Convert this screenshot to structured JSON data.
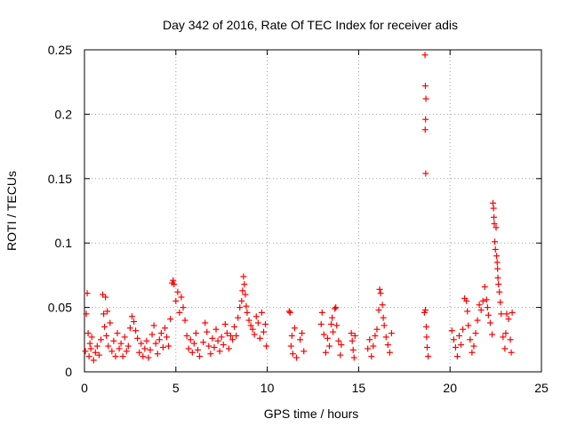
{
  "chart_data": {
    "type": "scatter",
    "title": "Day 342 of 2016, Rate Of TEC Index for receiver adis",
    "xlabel": "GPS time / hours",
    "ylabel": "ROTI / TECUs",
    "xlim": [
      0,
      25
    ],
    "ylim": [
      0,
      0.25
    ],
    "xticks": [
      0,
      5,
      10,
      15,
      20,
      25
    ],
    "xtick_labels": [
      "0",
      "5",
      "10",
      "15",
      "20",
      "25"
    ],
    "yticks": [
      0,
      0.05,
      0.1,
      0.15,
      0.2,
      0.25
    ],
    "ytick_labels": [
      "0",
      "0.05",
      "0.1",
      "0.15",
      "0.2",
      "0.25"
    ],
    "grid": true,
    "marker": "+",
    "color": "#ff0000",
    "series": [
      {
        "name": "ROTI",
        "points": [
          [
            0.05,
            0.016
          ],
          [
            0.1,
            0.045
          ],
          [
            0.15,
            0.061
          ],
          [
            0.2,
            0.03
          ],
          [
            0.25,
            0.012
          ],
          [
            0.3,
            0.022
          ],
          [
            0.35,
            0.018
          ],
          [
            0.4,
            0.027
          ],
          [
            0.5,
            0.009
          ],
          [
            0.6,
            0.015
          ],
          [
            0.7,
            0.02
          ],
          [
            0.8,
            0.013
          ],
          [
            0.9,
            0.025
          ],
          [
            1.0,
            0.06
          ],
          [
            1.05,
            0.045
          ],
          [
            1.1,
            0.035
          ],
          [
            1.15,
            0.058
          ],
          [
            1.2,
            0.028
          ],
          [
            1.25,
            0.047
          ],
          [
            1.3,
            0.02
          ],
          [
            1.4,
            0.038
          ],
          [
            1.5,
            0.016
          ],
          [
            1.6,
            0.024
          ],
          [
            1.7,
            0.012
          ],
          [
            1.8,
            0.03
          ],
          [
            1.9,
            0.018
          ],
          [
            2.0,
            0.022
          ],
          [
            2.1,
            0.012
          ],
          [
            2.2,
            0.027
          ],
          [
            2.3,
            0.016
          ],
          [
            2.4,
            0.02
          ],
          [
            2.5,
            0.034
          ],
          [
            2.6,
            0.043
          ],
          [
            2.7,
            0.039
          ],
          [
            2.8,
            0.032
          ],
          [
            2.9,
            0.026
          ],
          [
            3.0,
            0.015
          ],
          [
            3.1,
            0.022
          ],
          [
            3.2,
            0.012
          ],
          [
            3.3,
            0.018
          ],
          [
            3.4,
            0.024
          ],
          [
            3.5,
            0.011
          ],
          [
            3.6,
            0.017
          ],
          [
            3.7,
            0.029
          ],
          [
            3.8,
            0.036
          ],
          [
            3.9,
            0.022
          ],
          [
            4.0,
            0.014
          ],
          [
            4.1,
            0.025
          ],
          [
            4.2,
            0.03
          ],
          [
            4.3,
            0.019
          ],
          [
            4.4,
            0.034
          ],
          [
            4.5,
            0.027
          ],
          [
            4.6,
            0.02
          ],
          [
            4.7,
            0.041
          ],
          [
            4.8,
            0.069
          ],
          [
            4.85,
            0.071
          ],
          [
            4.9,
            0.068
          ],
          [
            5.0,
            0.055
          ],
          [
            5.1,
            0.062
          ],
          [
            5.2,
            0.046
          ],
          [
            5.3,
            0.058
          ],
          [
            5.4,
            0.05
          ],
          [
            5.5,
            0.04
          ],
          [
            5.6,
            0.028
          ],
          [
            5.7,
            0.018
          ],
          [
            5.8,
            0.025
          ],
          [
            5.9,
            0.015
          ],
          [
            6.0,
            0.022
          ],
          [
            6.1,
            0.03
          ],
          [
            6.2,
            0.017
          ],
          [
            6.3,
            0.012
          ],
          [
            6.5,
            0.023
          ],
          [
            6.6,
            0.038
          ],
          [
            6.7,
            0.031
          ],
          [
            6.8,
            0.02
          ],
          [
            6.9,
            0.014
          ],
          [
            7.0,
            0.026
          ],
          [
            7.1,
            0.019
          ],
          [
            7.2,
            0.033
          ],
          [
            7.3,
            0.024
          ],
          [
            7.4,
            0.016
          ],
          [
            7.5,
            0.027
          ],
          [
            7.6,
            0.021
          ],
          [
            7.7,
            0.037
          ],
          [
            7.8,
            0.03
          ],
          [
            7.9,
            0.018
          ],
          [
            8.0,
            0.028
          ],
          [
            8.1,
            0.025
          ],
          [
            8.2,
            0.035
          ],
          [
            8.3,
            0.028
          ],
          [
            8.4,
            0.042
          ],
          [
            8.5,
            0.05
          ],
          [
            8.6,
            0.055
          ],
          [
            8.65,
            0.063
          ],
          [
            8.7,
            0.074
          ],
          [
            8.75,
            0.068
          ],
          [
            8.8,
            0.06
          ],
          [
            8.85,
            0.051
          ],
          [
            8.9,
            0.046
          ],
          [
            9.0,
            0.04
          ],
          [
            9.1,
            0.036
          ],
          [
            9.2,
            0.033
          ],
          [
            9.3,
            0.029
          ],
          [
            9.4,
            0.043
          ],
          [
            9.5,
            0.038
          ],
          [
            9.6,
            0.026
          ],
          [
            9.7,
            0.046
          ],
          [
            9.8,
            0.031
          ],
          [
            9.9,
            0.037
          ],
          [
            9.95,
            0.02
          ],
          [
            11.2,
            0.047
          ],
          [
            11.25,
            0.046
          ],
          [
            11.3,
            0.02
          ],
          [
            11.35,
            0.028
          ],
          [
            11.4,
            0.014
          ],
          [
            11.5,
            0.034
          ],
          [
            11.6,
            0.011
          ],
          [
            11.8,
            0.025
          ],
          [
            11.9,
            0.03
          ],
          [
            12.0,
            0.016
          ],
          [
            12.95,
            0.037
          ],
          [
            13.0,
            0.046
          ],
          [
            13.1,
            0.029
          ],
          [
            13.2,
            0.015
          ],
          [
            13.3,
            0.026
          ],
          [
            13.4,
            0.02
          ],
          [
            13.5,
            0.037
          ],
          [
            13.55,
            0.042
          ],
          [
            13.6,
            0.031
          ],
          [
            13.7,
            0.049
          ],
          [
            13.75,
            0.05
          ],
          [
            13.8,
            0.036
          ],
          [
            13.9,
            0.024
          ],
          [
            14.0,
            0.013
          ],
          [
            14.05,
            0.021
          ],
          [
            14.6,
            0.03
          ],
          [
            14.65,
            0.024
          ],
          [
            14.7,
            0.017
          ],
          [
            14.75,
            0.011
          ],
          [
            14.8,
            0.028
          ],
          [
            15.5,
            0.018
          ],
          [
            15.6,
            0.025
          ],
          [
            15.7,
            0.012
          ],
          [
            15.8,
            0.02
          ],
          [
            15.9,
            0.028
          ],
          [
            16.0,
            0.033
          ],
          [
            16.1,
            0.048
          ],
          [
            16.15,
            0.064
          ],
          [
            16.2,
            0.061
          ],
          [
            16.3,
            0.052
          ],
          [
            16.35,
            0.042
          ],
          [
            16.4,
            0.036
          ],
          [
            16.5,
            0.027
          ],
          [
            16.6,
            0.021
          ],
          [
            16.7,
            0.015
          ],
          [
            16.8,
            0.03
          ],
          [
            18.6,
            0.046
          ],
          [
            18.65,
            0.048
          ],
          [
            18.7,
            0.035
          ],
          [
            18.72,
            0.027
          ],
          [
            18.75,
            0.019
          ],
          [
            18.8,
            0.012
          ],
          [
            18.63,
            0.246
          ],
          [
            18.65,
            0.222
          ],
          [
            18.68,
            0.212
          ],
          [
            18.66,
            0.196
          ],
          [
            18.64,
            0.188
          ],
          [
            18.67,
            0.154
          ],
          [
            20.1,
            0.032
          ],
          [
            20.2,
            0.025
          ],
          [
            20.3,
            0.019
          ],
          [
            20.4,
            0.012
          ],
          [
            20.5,
            0.028
          ],
          [
            20.6,
            0.021
          ],
          [
            20.7,
            0.033
          ],
          [
            20.8,
            0.057
          ],
          [
            20.9,
            0.055
          ],
          [
            20.95,
            0.047
          ],
          [
            21.0,
            0.036
          ],
          [
            21.1,
            0.025
          ],
          [
            21.2,
            0.015
          ],
          [
            21.3,
            0.02
          ],
          [
            21.4,
            0.03
          ],
          [
            21.5,
            0.04
          ],
          [
            21.6,
            0.052
          ],
          [
            21.7,
            0.048
          ],
          [
            21.8,
            0.055
          ],
          [
            21.9,
            0.066
          ],
          [
            22.0,
            0.056
          ],
          [
            22.05,
            0.05
          ],
          [
            22.1,
            0.044
          ],
          [
            22.2,
            0.038
          ],
          [
            22.3,
            0.029
          ],
          [
            22.35,
            0.131
          ],
          [
            22.38,
            0.127
          ],
          [
            22.4,
            0.12
          ],
          [
            22.42,
            0.115
          ],
          [
            22.45,
            0.101
          ],
          [
            22.48,
            0.095
          ],
          [
            22.52,
            0.112
          ],
          [
            22.55,
            0.09
          ],
          [
            22.58,
            0.085
          ],
          [
            22.6,
            0.08
          ],
          [
            22.62,
            0.073
          ],
          [
            22.65,
            0.068
          ],
          [
            22.7,
            0.062
          ],
          [
            22.75,
            0.054
          ],
          [
            22.8,
            0.045
          ],
          [
            22.9,
            0.027
          ],
          [
            23.0,
            0.018
          ],
          [
            23.05,
            0.03
          ],
          [
            23.1,
            0.045
          ],
          [
            23.2,
            0.041
          ],
          [
            23.3,
            0.025
          ],
          [
            23.35,
            0.015
          ],
          [
            23.4,
            0.046
          ]
        ]
      }
    ]
  }
}
